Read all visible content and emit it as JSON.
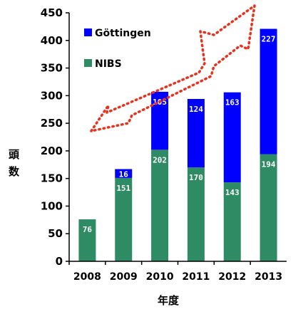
{
  "chart_data": {
    "type": "bar",
    "stacked": true,
    "categories": [
      "2008",
      "2009",
      "2010",
      "2011",
      "2012",
      "2013"
    ],
    "series": [
      {
        "name": "NIBS",
        "values": [
          76,
          151,
          202,
          170,
          143,
          194
        ],
        "color": "#2e8b63"
      },
      {
        "name": "Göttingen",
        "values": [
          null,
          16,
          105,
          124,
          163,
          227
        ],
        "color": "#0000ff"
      }
    ],
    "title": "",
    "xlabel": "年度",
    "ylabel": "頭数",
    "ylim": [
      0,
      450
    ],
    "yticks": [
      0,
      50,
      100,
      150,
      200,
      250,
      300,
      350,
      400,
      450
    ],
    "grid": false,
    "legend": "top-left",
    "annotation": "red dotted upward arrow indicating growth trend"
  }
}
